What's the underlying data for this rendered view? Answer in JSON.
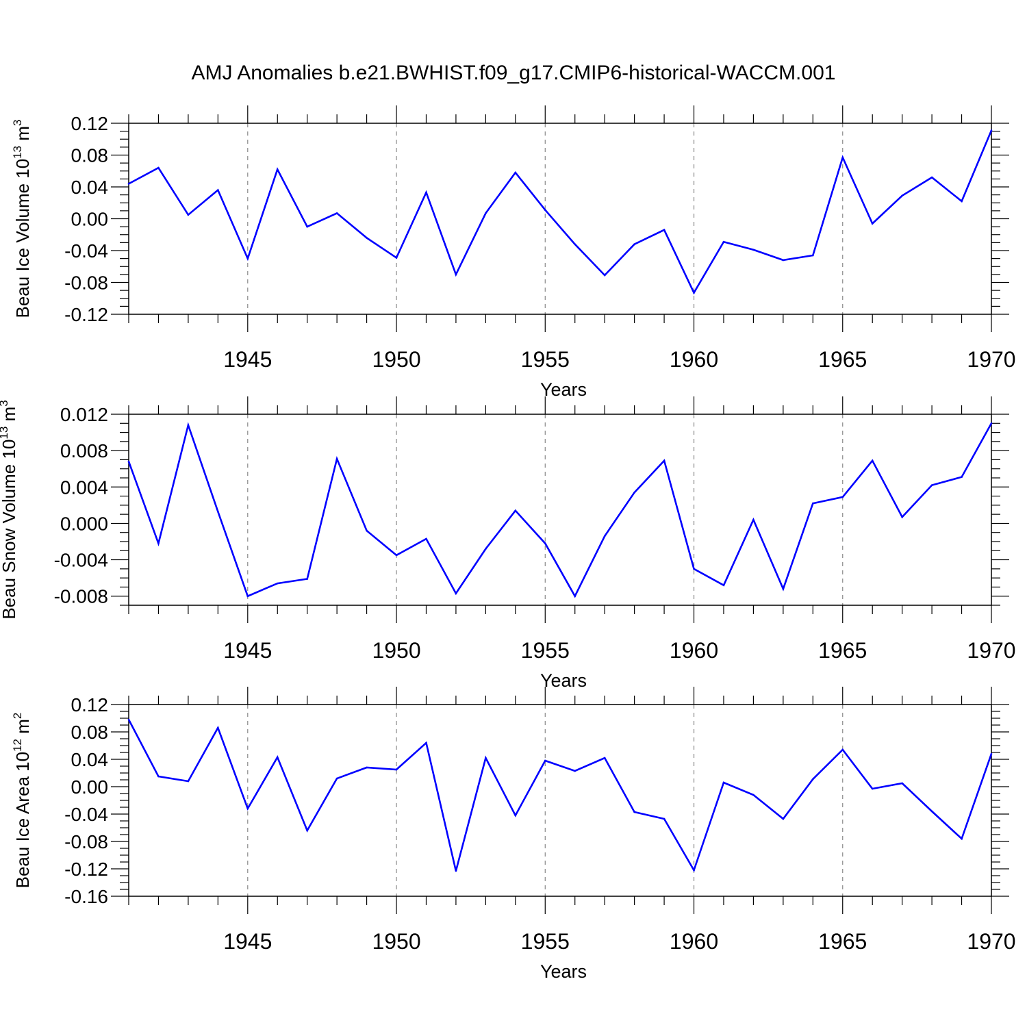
{
  "title": "AMJ Anomalies b.e21.BWHIST.f09_g17.CMIP6-historical-WACCM.001",
  "colors": {
    "series": "#0000ff",
    "axis": "#000000",
    "grid": "#888888"
  },
  "chart_data": [
    {
      "type": "line",
      "ylabel": {
        "text": "Beau Ice Volume 10",
        "sup": "13",
        "unit": "m",
        "unit_sup": "3"
      },
      "xlabel": "Years",
      "xlim": [
        1941,
        1970
      ],
      "ylim": [
        -0.12,
        0.12
      ],
      "x_ticks": [
        "1945",
        "1950",
        "1955",
        "1960",
        "1965",
        "1970"
      ],
      "y_ticks": [
        "0.12",
        "0.08",
        "0.04",
        "0.00",
        "-0.04",
        "-0.08",
        "-0.12"
      ],
      "grid": "dashed vertical lines at major x ticks",
      "x": [
        1941,
        1942,
        1943,
        1944,
        1945,
        1946,
        1947,
        1948,
        1949,
        1950,
        1951,
        1952,
        1953,
        1954,
        1955,
        1956,
        1957,
        1958,
        1959,
        1960,
        1961,
        1962,
        1963,
        1964,
        1965,
        1966,
        1967,
        1968,
        1969,
        1970
      ],
      "values": [
        0.044,
        0.064,
        0.005,
        0.036,
        -0.05,
        0.062,
        -0.01,
        0.007,
        -0.024,
        -0.049,
        0.033,
        -0.07,
        0.007,
        0.058,
        0.011,
        -0.032,
        -0.071,
        -0.032,
        -0.014,
        -0.093,
        -0.029,
        -0.039,
        -0.052,
        -0.046,
        0.077,
        -0.006,
        0.029,
        0.052,
        0.022,
        0.111
      ]
    },
    {
      "type": "line",
      "ylabel": {
        "text": "Beau Snow Volume 10",
        "sup": "13",
        "unit": "m",
        "unit_sup": "3"
      },
      "xlabel": "Years",
      "xlim": [
        1941,
        1970
      ],
      "ylim": [
        -0.009,
        0.012
      ],
      "x_ticks": [
        "1945",
        "1950",
        "1955",
        "1960",
        "1965",
        "1970"
      ],
      "y_ticks": [
        "0.012",
        "0.008",
        "0.004",
        "0.000",
        "-0.004",
        "-0.008"
      ],
      "grid": "dashed vertical lines at major x ticks",
      "x": [
        1941,
        1942,
        1943,
        1944,
        1945,
        1946,
        1947,
        1948,
        1949,
        1950,
        1951,
        1952,
        1953,
        1954,
        1955,
        1956,
        1957,
        1958,
        1959,
        1960,
        1961,
        1962,
        1963,
        1964,
        1965,
        1966,
        1967,
        1968,
        1969,
        1970
      ],
      "values": [
        0.0068,
        -0.0022,
        0.0108,
        0.0013,
        -0.008,
        -0.0066,
        -0.0061,
        0.0071,
        -0.0008,
        -0.0035,
        -0.0017,
        -0.0077,
        -0.0028,
        0.0014,
        -0.0022,
        -0.008,
        -0.0014,
        0.0034,
        0.0069,
        -0.005,
        -0.0068,
        0.0004,
        -0.0072,
        0.0022,
        0.0029,
        0.0069,
        0.0007,
        0.0042,
        0.0051,
        0.011
      ]
    },
    {
      "type": "line",
      "ylabel": {
        "text": "Beau Ice Area 10",
        "sup": "12",
        "unit": "m",
        "unit_sup": "2"
      },
      "xlabel": "Years",
      "xlim": [
        1941,
        1970
      ],
      "ylim": [
        -0.16,
        0.12
      ],
      "x_ticks": [
        "1945",
        "1950",
        "1955",
        "1960",
        "1965",
        "1970"
      ],
      "y_ticks": [
        "0.12",
        "0.08",
        "0.04",
        "0.00",
        "-0.04",
        "-0.08",
        "-0.12",
        "-0.16"
      ],
      "grid": "dashed vertical lines at major x ticks",
      "x": [
        1941,
        1942,
        1943,
        1944,
        1945,
        1946,
        1947,
        1948,
        1949,
        1950,
        1951,
        1952,
        1953,
        1954,
        1955,
        1956,
        1957,
        1958,
        1959,
        1960,
        1961,
        1962,
        1963,
        1964,
        1965,
        1966,
        1967,
        1968,
        1969,
        1970
      ],
      "values": [
        0.098,
        0.015,
        0.008,
        0.086,
        -0.032,
        0.043,
        -0.064,
        0.012,
        0.028,
        0.025,
        0.064,
        -0.123,
        0.042,
        -0.042,
        0.038,
        0.023,
        0.042,
        -0.037,
        -0.047,
        -0.122,
        0.006,
        -0.012,
        -0.047,
        0.011,
        0.054,
        -0.003,
        0.005,
        -0.036,
        -0.076,
        0.048
      ]
    }
  ]
}
